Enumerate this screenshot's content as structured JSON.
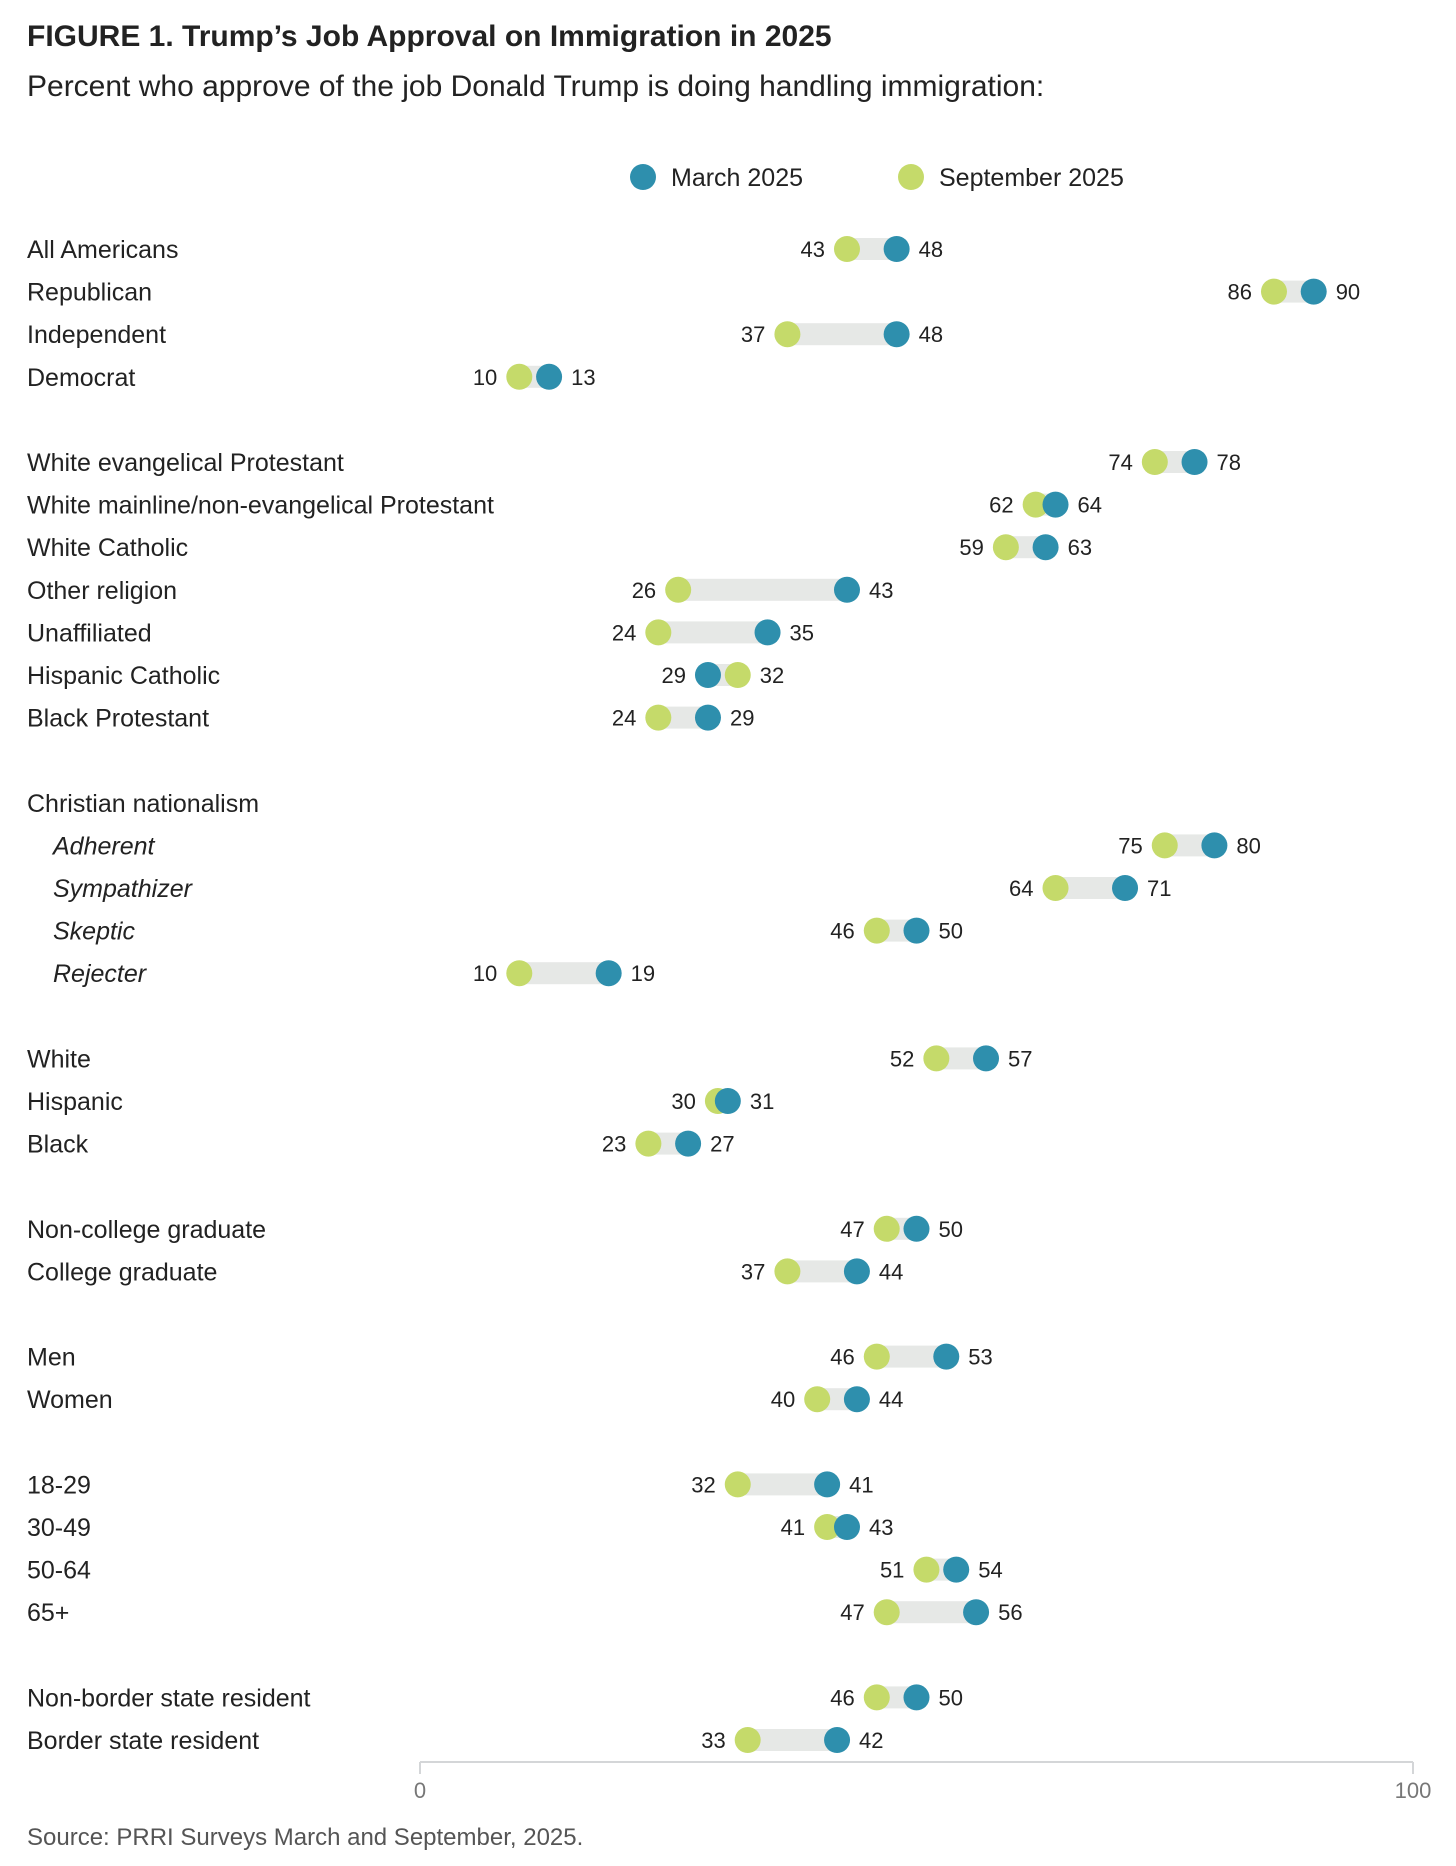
{
  "figure": {
    "title": "FIGURE 1.  Trump’s Job Approval on Immigration in 2025",
    "subtitle": "Percent who approve of the job Donald Trump is doing handling immigration:",
    "source": "Source: PRRI Surveys March and September, 2025."
  },
  "chart_data": {
    "type": "dumbbell",
    "xlim": [
      0,
      100
    ],
    "xticks": [
      "0",
      "100"
    ],
    "grid": false,
    "legend_position": "top-center",
    "colors": {
      "march": "#2e8fad",
      "september": "#c5da6a",
      "connector": "#e6e8e6",
      "axis": "#d4d6d8"
    },
    "series": [
      {
        "key": "march",
        "name": "March 2025"
      },
      {
        "key": "september",
        "name": "September 2025"
      }
    ],
    "groups": [
      {
        "heading": null,
        "rows": [
          {
            "label": "All Americans",
            "march": 48,
            "september": 43
          },
          {
            "label": "Republican",
            "march": 90,
            "september": 86
          },
          {
            "label": "Independent",
            "march": 48,
            "september": 37
          },
          {
            "label": "Democrat",
            "march": 13,
            "september": 10
          }
        ]
      },
      {
        "heading": null,
        "rows": [
          {
            "label": "White evangelical Protestant",
            "march": 78,
            "september": 74
          },
          {
            "label": "White mainline/non-evangelical Protestant",
            "march": 64,
            "september": 62
          },
          {
            "label": "White Catholic",
            "march": 63,
            "september": 59
          },
          {
            "label": "Other religion",
            "march": 43,
            "september": 26
          },
          {
            "label": "Unaffiliated",
            "march": 35,
            "september": 24
          },
          {
            "label": "Hispanic Catholic",
            "march": 29,
            "september": 32
          },
          {
            "label": "Black Protestant",
            "march": 29,
            "september": 24
          }
        ]
      },
      {
        "heading": "Christian nationalism",
        "rows": [
          {
            "label": "Adherent",
            "march": 80,
            "september": 75
          },
          {
            "label": "Sympathizer",
            "march": 71,
            "september": 64
          },
          {
            "label": "Skeptic",
            "march": 50,
            "september": 46
          },
          {
            "label": "Rejecter",
            "march": 19,
            "september": 10
          }
        ]
      },
      {
        "heading": null,
        "rows": [
          {
            "label": "White",
            "march": 57,
            "september": 52
          },
          {
            "label": "Hispanic",
            "march": 31,
            "september": 30
          },
          {
            "label": "Black",
            "march": 27,
            "september": 23
          }
        ]
      },
      {
        "heading": null,
        "rows": [
          {
            "label": "Non-college graduate",
            "march": 50,
            "september": 47
          },
          {
            "label": "College graduate",
            "march": 44,
            "september": 37
          }
        ]
      },
      {
        "heading": null,
        "rows": [
          {
            "label": "Men",
            "march": 53,
            "september": 46
          },
          {
            "label": "Women",
            "march": 44,
            "september": 40
          }
        ]
      },
      {
        "heading": null,
        "rows": [
          {
            "label": "18-29",
            "march": 41,
            "september": 32
          },
          {
            "label": "30-49",
            "march": 43,
            "september": 41
          },
          {
            "label": "50-64",
            "march": 54,
            "september": 51
          },
          {
            "label": "65+",
            "march": 56,
            "september": 47
          }
        ]
      },
      {
        "heading": null,
        "rows": [
          {
            "label": "Non-border state resident",
            "march": 50,
            "september": 46
          },
          {
            "label": "Border state resident",
            "march": 42,
            "september": 33
          }
        ]
      }
    ]
  }
}
